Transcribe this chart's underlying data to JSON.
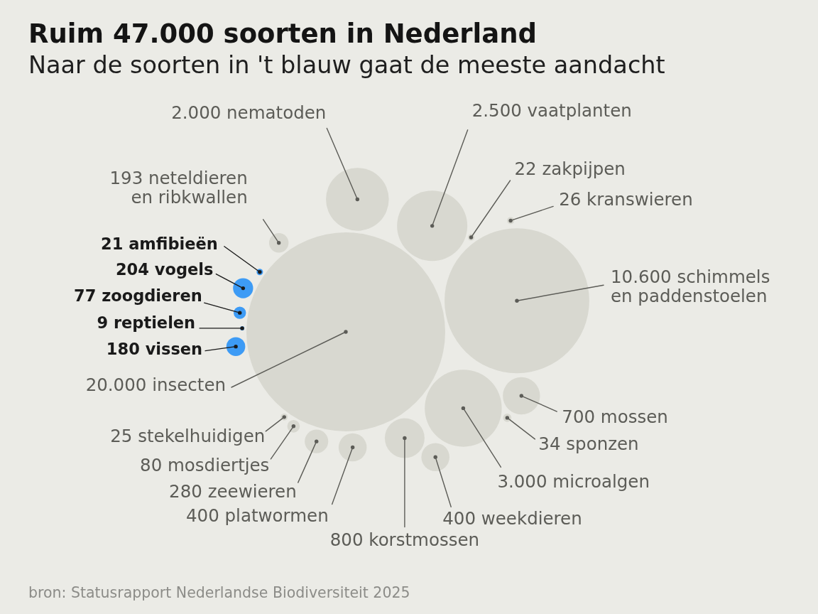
{
  "chart_data": {
    "type": "other",
    "title": "Ruim 47.000 soorten in Nederland",
    "subtitle": "Naar de soorten in 't blauw gaat de meeste aandacht",
    "categories": [
      "insecten",
      "nematoden",
      "vaatplanten",
      "zakpijpen",
      "kranswieren",
      "schimmels en paddenstoelen",
      "mossen",
      "sponzen",
      "microalgen",
      "weekdieren",
      "korstmossen",
      "platwormen",
      "zeewieren",
      "mosdiertjes",
      "stekelhuidigen",
      "vissen",
      "reptielen",
      "zoogdieren",
      "vogels",
      "amfibieën",
      "neteldieren en ribkwallen"
    ],
    "values": [
      20000,
      2000,
      2500,
      22,
      26,
      10600,
      700,
      34,
      3000,
      400,
      800,
      400,
      280,
      80,
      25,
      180,
      9,
      77,
      204,
      21,
      193
    ],
    "value_labels": [
      "20.000",
      "2.000",
      "2.500",
      "22",
      "26",
      "10.600",
      "700",
      "34",
      "3.000",
      "400",
      "800",
      "400",
      "280",
      "80",
      "25",
      "180",
      "9",
      "77",
      "204",
      "21",
      "193"
    ],
    "colors": [
      "#d8d8d0",
      "#d8d8d0",
      "#d8d8d0",
      "#d8d8d0",
      "#d8d8d0",
      "#d8d8d0",
      "#d8d8d0",
      "#d8d8d0",
      "#d8d8d0",
      "#d8d8d0",
      "#d8d8d0",
      "#d8d8d0",
      "#d8d8d0",
      "#d8d8d0",
      "#d8d8d0",
      "#3d9bf5",
      "#3d9bf5",
      "#3d9bf5",
      "#3d9bf5",
      "#3d9bf5",
      "#d8d8d0"
    ],
    "annotations": [
      "bron: Statusrapport Nederlandse Biodiversiteit 2025"
    ]
  }
}
